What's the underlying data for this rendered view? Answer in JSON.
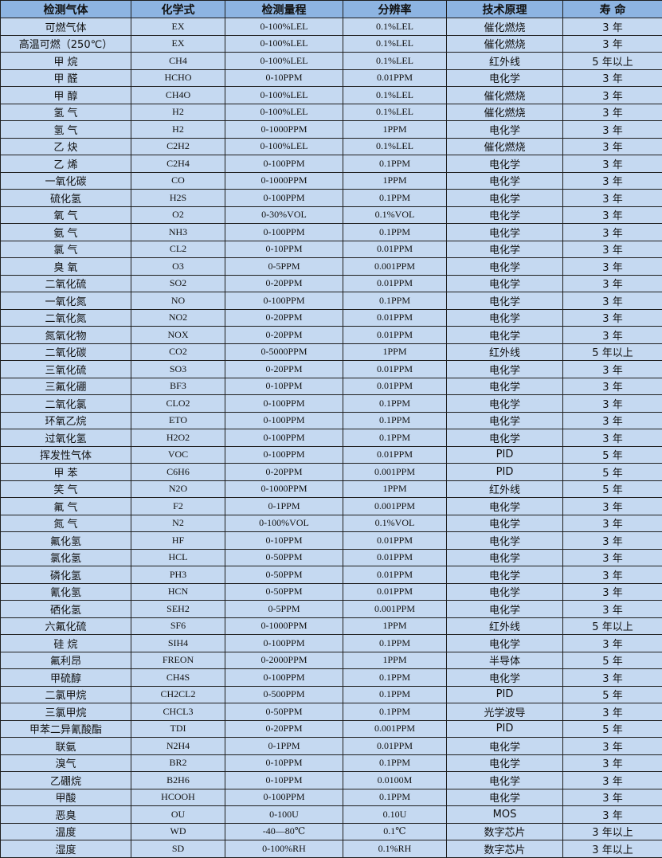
{
  "colors": {
    "header_bg": "#8db4e2",
    "row_bg": "#c5d9f1",
    "border": "#1f1f1f"
  },
  "headers": [
    "检测气体",
    "化学式",
    "检测量程",
    "分辨率",
    "技术原理",
    "寿 命"
  ],
  "rows": [
    [
      "可燃气体",
      "EX",
      "0-100%LEL",
      "0.1%LEL",
      "催化燃烧",
      "3 年"
    ],
    [
      "高温可燃（250℃）",
      "EX",
      "0-100%LEL",
      "0.1%LEL",
      "催化燃烧",
      "3 年"
    ],
    [
      "甲 烷",
      "CH4",
      "0-100%LEL",
      "0.1%LEL",
      "红外线",
      "5 年以上"
    ],
    [
      "甲 醛",
      "HCHO",
      "0-10PPM",
      "0.01PPM",
      "电化学",
      "3 年"
    ],
    [
      "甲 醇",
      "CH4O",
      "0-100%LEL",
      "0.1%LEL",
      "催化燃烧",
      "3 年"
    ],
    [
      "氢 气",
      "H2",
      "0-100%LEL",
      "0.1%LEL",
      "催化燃烧",
      "3 年"
    ],
    [
      "氢 气",
      "H2",
      "0-1000PPM",
      "1PPM",
      "电化学",
      "3 年"
    ],
    [
      "乙 炔",
      "C2H2",
      "0-100%LEL",
      "0.1%LEL",
      "催化燃烧",
      "3 年"
    ],
    [
      "乙 烯",
      "C2H4",
      "0-100PPM",
      "0.1PPM",
      "电化学",
      "3 年"
    ],
    [
      "一氧化碳",
      "CO",
      "0-1000PPM",
      "1PPM",
      "电化学",
      "3 年"
    ],
    [
      "硫化氢",
      "H2S",
      "0-100PPM",
      "0.1PPM",
      "电化学",
      "3 年"
    ],
    [
      "氧 气",
      "O2",
      "0-30%VOL",
      "0.1%VOL",
      "电化学",
      "3 年"
    ],
    [
      "氨 气",
      "NH3",
      "0-100PPM",
      "0.1PPM",
      "电化学",
      "3 年"
    ],
    [
      "氯 气",
      "CL2",
      "0-10PPM",
      "0.01PPM",
      "电化学",
      "3 年"
    ],
    [
      "臭 氧",
      "O3",
      "0-5PPM",
      "0.001PPM",
      "电化学",
      "3 年"
    ],
    [
      "二氧化硫",
      "SO2",
      "0-20PPM",
      "0.01PPM",
      "电化学",
      "3 年"
    ],
    [
      "一氧化氮",
      "NO",
      "0-100PPM",
      "0.1PPM",
      "电化学",
      "3 年"
    ],
    [
      "二氧化氮",
      "NO2",
      "0-20PPM",
      "0.01PPM",
      "电化学",
      "3 年"
    ],
    [
      "氮氧化物",
      "NOX",
      "0-20PPM",
      "0.01PPM",
      "电化学",
      "3 年"
    ],
    [
      "二氧化碳",
      "CO2",
      "0-5000PPM",
      "1PPM",
      "红外线",
      "5 年以上"
    ],
    [
      "三氧化硫",
      "SO3",
      "0-20PPM",
      "0.01PPM",
      "电化学",
      "3 年"
    ],
    [
      "三氟化硼",
      "BF3",
      "0-10PPM",
      "0.01PPM",
      "电化学",
      "3 年"
    ],
    [
      "二氧化氯",
      "CLO2",
      "0-100PPM",
      "0.1PPM",
      "电化学",
      "3 年"
    ],
    [
      "环氧乙烷",
      "ETO",
      "0-100PPM",
      "0.1PPM",
      "电化学",
      "3 年"
    ],
    [
      "过氧化氢",
      "H2O2",
      "0-100PPM",
      "0.1PPM",
      "电化学",
      "3 年"
    ],
    [
      "挥发性气体",
      "VOC",
      "0-100PPM",
      "0.01PPM",
      "PID",
      "5 年"
    ],
    [
      "甲 苯",
      "C6H6",
      "0-20PPM",
      "0.001PPM",
      "PID",
      "5 年"
    ],
    [
      "笑 气",
      "N2O",
      "0-1000PPM",
      "1PPM",
      "红外线",
      "5 年"
    ],
    [
      "氟 气",
      "F2",
      "0-1PPM",
      "0.001PPM",
      "电化学",
      "3 年"
    ],
    [
      "氮 气",
      "N2",
      "0-100%VOL",
      "0.1%VOL",
      "电化学",
      "3 年"
    ],
    [
      "氟化氢",
      "HF",
      "0-10PPM",
      "0.01PPM",
      "电化学",
      "3 年"
    ],
    [
      "氯化氢",
      "HCL",
      "0-50PPM",
      "0.01PPM",
      "电化学",
      "3 年"
    ],
    [
      "磷化氢",
      "PH3",
      "0-50PPM",
      "0.01PPM",
      "电化学",
      "3 年"
    ],
    [
      "氰化氢",
      "HCN",
      "0-50PPM",
      "0.01PPM",
      "电化学",
      "3 年"
    ],
    [
      "硒化氢",
      "SEH2",
      "0-5PPM",
      "0.001PPM",
      "电化学",
      "3 年"
    ],
    [
      "六氟化硫",
      "SF6",
      "0-1000PPM",
      "1PPM",
      "红外线",
      "5 年以上"
    ],
    [
      "硅 烷",
      "SIH4",
      "0-100PPM",
      "0.1PPM",
      "电化学",
      "3 年"
    ],
    [
      "氟利昂",
      "FREON",
      "0-2000PPM",
      "1PPM",
      "半导体",
      "5 年"
    ],
    [
      "甲硫醇",
      "CH4S",
      "0-100PPM",
      "0.1PPM",
      "电化学",
      "3 年"
    ],
    [
      "二氯甲烷",
      "CH2CL2",
      "0-500PPM",
      "0.1PPM",
      "PID",
      "5 年"
    ],
    [
      "三氯甲烷",
      "CHCL3",
      "0-50PPM",
      "0.1PPM",
      "光学波导",
      "3 年"
    ],
    [
      "甲苯二异氰酸酯",
      "TDI",
      "0-20PPM",
      "0.001PPM",
      "PID",
      "5 年"
    ],
    [
      "联氨",
      "N2H4",
      "0-1PPM",
      "0.01PPM",
      "电化学",
      "3 年"
    ],
    [
      "溴气",
      "BR2",
      "0-10PPM",
      "0.1PPM",
      "电化学",
      "3 年"
    ],
    [
      "乙硼烷",
      "B2H6",
      "0-10PPM",
      "0.0100M",
      "电化学",
      "3 年"
    ],
    [
      "甲酸",
      "HCOOH",
      "0-100PPM",
      "0.1PPM",
      "电化学",
      "3 年"
    ],
    [
      "恶臭",
      "OU",
      "0-100U",
      "0.10U",
      "MOS",
      "3 年"
    ],
    [
      "温度",
      "WD",
      "-40—80℃",
      "0.1℃",
      "数字芯片",
      "3 年以上"
    ],
    [
      "湿度",
      "SD",
      "0-100%RH",
      "0.1%RH",
      "数字芯片",
      "3 年以上"
    ]
  ]
}
